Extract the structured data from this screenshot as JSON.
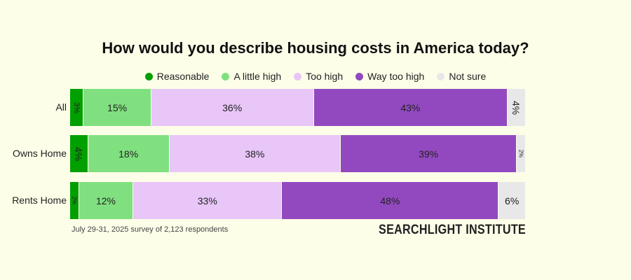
{
  "chart_data": {
    "type": "bar",
    "orientation": "horizontal-stacked",
    "title": "How would you describe housing costs in America today?",
    "categories": [
      "All",
      "Owns Home",
      "Rents Home"
    ],
    "series": [
      {
        "name": "Reasonable",
        "color": "#00a000",
        "values": [
          3,
          4,
          2
        ]
      },
      {
        "name": "A little high",
        "color": "#80e080",
        "values": [
          15,
          18,
          12
        ]
      },
      {
        "name": "Too high",
        "color": "#e8c6f8",
        "values": [
          36,
          38,
          33
        ]
      },
      {
        "name": "Way too high",
        "color": "#9249c0",
        "values": [
          43,
          39,
          48
        ]
      },
      {
        "name": "Not sure",
        "color": "#e8e8e8",
        "values": [
          4,
          2,
          6
        ]
      }
    ],
    "legend_position": "top",
    "xlabel": "",
    "ylabel": ""
  },
  "footnote": "July 29-31, 2025 survey of 2,123 respondents",
  "brand": "SEARCHLIGHT INSTITUTE"
}
